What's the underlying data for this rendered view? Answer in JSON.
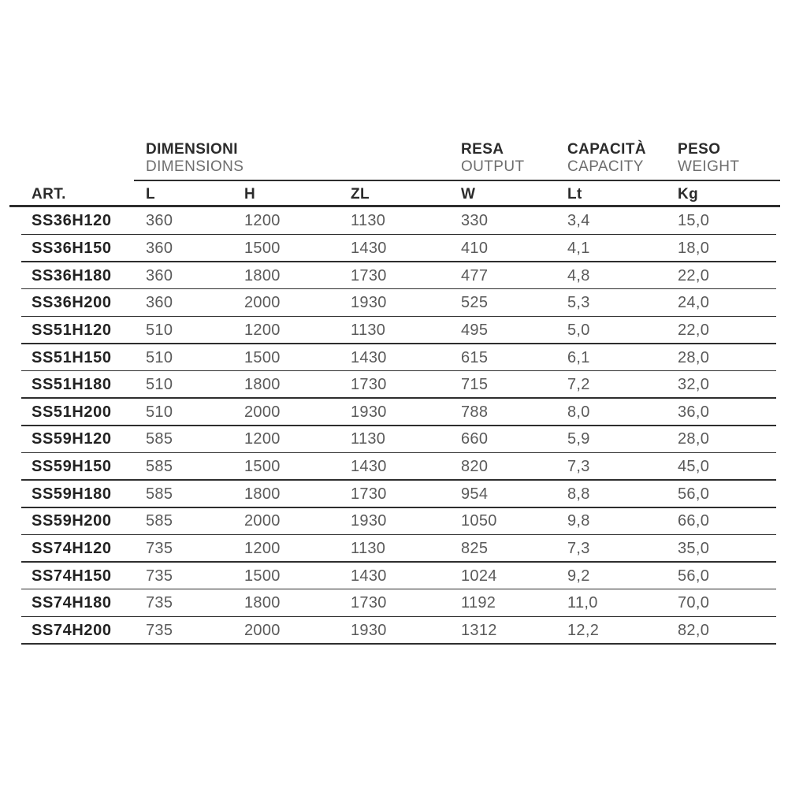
{
  "table": {
    "group_headers": [
      {
        "title": "DIMENSIONI",
        "subtitle": "DIMENSIONS"
      },
      {
        "title": "RESA",
        "subtitle": "OUTPUT"
      },
      {
        "title": "CAPACITÀ",
        "subtitle": "CAPACITY"
      },
      {
        "title": "PESO",
        "subtitle": "WEIGHT"
      }
    ],
    "columns": [
      "ART.",
      "L",
      "H",
      "ZL",
      "W",
      "Lt",
      "Kg"
    ],
    "rows": [
      [
        "SS36H120",
        "360",
        "1200",
        "1130",
        "330",
        "3,4",
        "15,0"
      ],
      [
        "SS36H150",
        "360",
        "1500",
        "1430",
        "410",
        "4,1",
        "18,0"
      ],
      [
        "SS36H180",
        "360",
        "1800",
        "1730",
        "477",
        "4,8",
        "22,0"
      ],
      [
        "SS36H200",
        "360",
        "2000",
        "1930",
        "525",
        "5,3",
        "24,0"
      ],
      [
        "SS51H120",
        "510",
        "1200",
        "1130",
        "495",
        "5,0",
        "22,0"
      ],
      [
        "SS51H150",
        "510",
        "1500",
        "1430",
        "615",
        "6,1",
        "28,0"
      ],
      [
        "SS51H180",
        "510",
        "1800",
        "1730",
        "715",
        "7,2",
        "32,0"
      ],
      [
        "SS51H200",
        "510",
        "2000",
        "1930",
        "788",
        "8,0",
        "36,0"
      ],
      [
        "SS59H120",
        "585",
        "1200",
        "1130",
        "660",
        "5,9",
        "28,0"
      ],
      [
        "SS59H150",
        "585",
        "1500",
        "1430",
        "820",
        "7,3",
        "45,0"
      ],
      [
        "SS59H180",
        "585",
        "1800",
        "1730",
        "954",
        "8,8",
        "56,0"
      ],
      [
        "SS59H200",
        "585",
        "2000",
        "1930",
        "1050",
        "9,8",
        "66,0"
      ],
      [
        "SS74H120",
        "735",
        "1200",
        "1130",
        "825",
        "7,3",
        "35,0"
      ],
      [
        "SS74H150",
        "735",
        "1500",
        "1430",
        "1024",
        "9,2",
        "56,0"
      ],
      [
        "SS74H180",
        "735",
        "1800",
        "1730",
        "1192",
        "11,0",
        "70,0"
      ],
      [
        "SS74H200",
        "735",
        "2000",
        "1930",
        "1312",
        "12,2",
        "82,0"
      ]
    ],
    "colors": {
      "text_dark": "#2b2b2b",
      "text_gray": "#5a5a5a",
      "subtitle_gray": "#6e6e6e",
      "line": "#2e2e2e",
      "background": "#ffffff"
    }
  }
}
